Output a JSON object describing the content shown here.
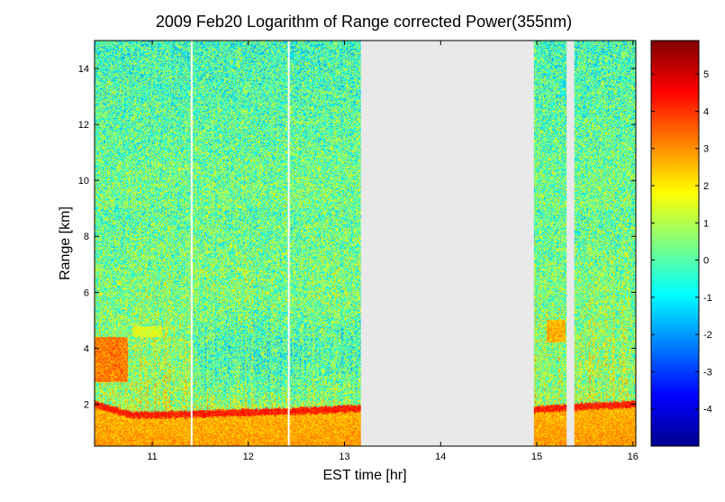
{
  "chart_data": {
    "type": "heatmap",
    "title": "2009 Feb20  Logarithm of Range corrected Power(355nm)",
    "xlabel": "EST time [hr]",
    "ylabel": "Range [km]",
    "xlim": [
      10.4,
      16.03
    ],
    "ylim": [
      0.5,
      15.0
    ],
    "x_ticks": [
      "11",
      "12",
      "13",
      "14",
      "15",
      "16"
    ],
    "y_ticks": [
      "2",
      "4",
      "6",
      "8",
      "10",
      "12",
      "14"
    ],
    "colorbar": {
      "colormap": "jet",
      "clim": [
        -5,
        5.9
      ],
      "ticks": [
        "5",
        "4",
        "3",
        "2",
        "1",
        "0",
        "-1",
        "-2",
        "-3",
        "-4"
      ]
    },
    "no_data_color": "#e9e9e9",
    "no_data_intervals": [
      [
        13.17,
        14.97
      ],
      [
        15.31,
        15.39
      ]
    ],
    "blank_profiles": [
      11.41,
      12.42
    ],
    "boundary_layer_top_km": [
      {
        "x": 10.4,
        "y": 2.0
      },
      {
        "x": 10.8,
        "y": 1.6
      },
      {
        "x": 11.5,
        "y": 1.65
      },
      {
        "x": 12.5,
        "y": 1.75
      },
      {
        "x": 13.17,
        "y": 1.85
      },
      {
        "x": 14.97,
        "y": 1.8
      },
      {
        "x": 15.4,
        "y": 1.9
      },
      {
        "x": 16.03,
        "y": 2.0
      }
    ],
    "aerosol_layers": [
      {
        "x": [
          10.4,
          10.75
        ],
        "y": [
          2.8,
          4.4
        ],
        "log_power": 3.2
      },
      {
        "x": [
          15.1,
          15.3
        ],
        "y": [
          4.2,
          5.0
        ],
        "log_power": 2.6
      },
      {
        "x": [
          10.8,
          11.1
        ],
        "y": [
          4.4,
          4.8
        ],
        "log_power": 1.5
      }
    ],
    "grid": false
  }
}
